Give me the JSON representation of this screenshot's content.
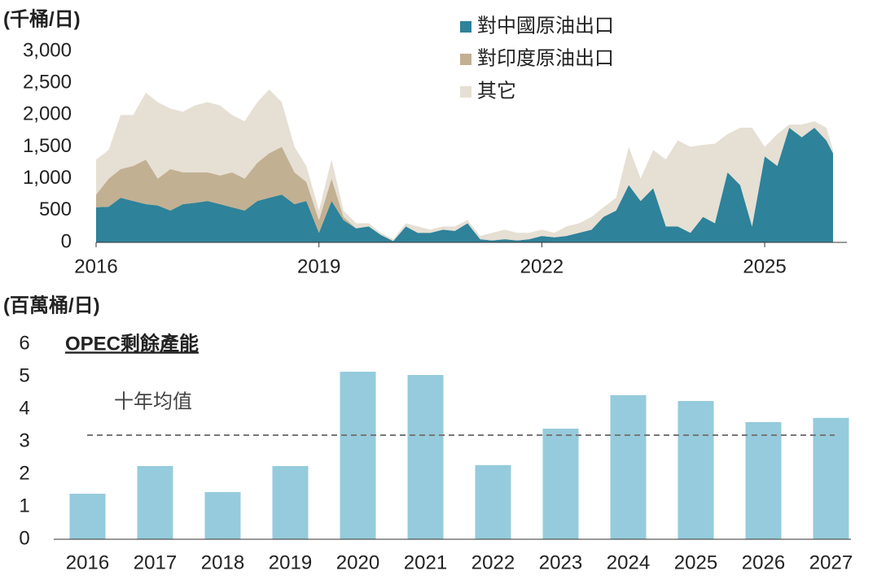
{
  "chart_data": [
    {
      "type": "stacked_area",
      "y_label": "(千桶/日)",
      "x": [
        2016,
        2016.17,
        2016.33,
        2016.5,
        2016.67,
        2016.83,
        2017,
        2017.17,
        2017.33,
        2017.5,
        2017.67,
        2017.83,
        2018,
        2018.17,
        2018.33,
        2018.5,
        2018.67,
        2018.83,
        2019,
        2019.17,
        2019.33,
        2019.5,
        2019.67,
        2019.83,
        2020,
        2020.17,
        2020.33,
        2020.5,
        2020.67,
        2020.83,
        2021,
        2021.17,
        2021.33,
        2021.5,
        2021.67,
        2021.83,
        2022,
        2022.17,
        2022.33,
        2022.5,
        2022.67,
        2022.83,
        2023,
        2023.17,
        2023.33,
        2023.5,
        2023.67,
        2023.83,
        2024,
        2024.17,
        2024.33,
        2024.5,
        2024.67,
        2024.83,
        2025,
        2025.17,
        2025.33,
        2025.5,
        2025.67,
        2025.83,
        2025.92
      ],
      "series": [
        {
          "name": "對中國原油出口",
          "color": "#2e8299",
          "values": [
            550,
            560,
            700,
            650,
            600,
            580,
            500,
            600,
            620,
            650,
            600,
            550,
            500,
            650,
            700,
            750,
            600,
            650,
            150,
            650,
            350,
            220,
            250,
            120,
            20,
            250,
            150,
            150,
            200,
            180,
            300,
            50,
            30,
            50,
            30,
            50,
            100,
            80,
            100,
            150,
            200,
            400,
            500,
            900,
            650,
            850,
            250,
            250,
            150,
            400,
            300,
            1100,
            900,
            250,
            1350,
            1200,
            1800,
            1650,
            1800,
            1600,
            1400
          ]
        },
        {
          "name": "對印度原油出口",
          "color": "#c2b092",
          "values": [
            200,
            440,
            450,
            550,
            700,
            420,
            650,
            500,
            480,
            450,
            450,
            550,
            500,
            600,
            700,
            750,
            500,
            300,
            200,
            350,
            50,
            0,
            0,
            0,
            0,
            0,
            0,
            0,
            0,
            0,
            0,
            0,
            0,
            0,
            0,
            0,
            0,
            0,
            0,
            0,
            0,
            0,
            0,
            0,
            0,
            0,
            0,
            0,
            0,
            0,
            0,
            0,
            0,
            0,
            0,
            0,
            0,
            0,
            0,
            0,
            0
          ]
        },
        {
          "name": "其它",
          "color": "#e6dfd3",
          "values": [
            550,
            450,
            850,
            800,
            1050,
            1200,
            950,
            950,
            1050,
            1100,
            1100,
            900,
            900,
            950,
            1000,
            700,
            400,
            250,
            150,
            300,
            100,
            80,
            50,
            30,
            30,
            50,
            100,
            50,
            50,
            70,
            50,
            50,
            120,
            150,
            120,
            100,
            100,
            70,
            150,
            150,
            200,
            150,
            200,
            600,
            350,
            600,
            1050,
            1350,
            1350,
            1130,
            1250,
            600,
            900,
            1550,
            150,
            500,
            50,
            200,
            100,
            200,
            50
          ]
        }
      ],
      "xlim": [
        2016,
        2025.92
      ],
      "xticks": [
        2016,
        2019,
        2022,
        2025
      ],
      "ylim": [
        0,
        3000
      ],
      "yticks": [
        0,
        500,
        {
          "value": 1000,
          "label": "1,000"
        },
        {
          "value": 1500,
          "label": "1,500"
        },
        {
          "value": 2000,
          "label": "2,000"
        },
        {
          "value": 2500,
          "label": "2,500"
        },
        {
          "value": 3000,
          "label": "3,000"
        }
      ]
    },
    {
      "type": "bar",
      "y_label": "(百萬桶/日)",
      "subtitle": "OPEC剩餘產能",
      "categories": [
        "2016",
        "2017",
        "2018",
        "2019",
        "2020",
        "2021",
        "2022",
        "2023",
        "2024",
        "2025",
        "2026",
        "2027"
      ],
      "values": [
        1.4,
        2.25,
        1.45,
        2.25,
        5.15,
        5.05,
        2.28,
        3.4,
        4.43,
        4.25,
        3.6,
        3.73
      ],
      "color": "#95cbdc",
      "reference_line": {
        "value": 3.2,
        "label": "十年均值"
      },
      "ylim": [
        0,
        6
      ],
      "yticks": [
        0,
        1,
        2,
        3,
        4,
        5,
        6
      ]
    }
  ]
}
